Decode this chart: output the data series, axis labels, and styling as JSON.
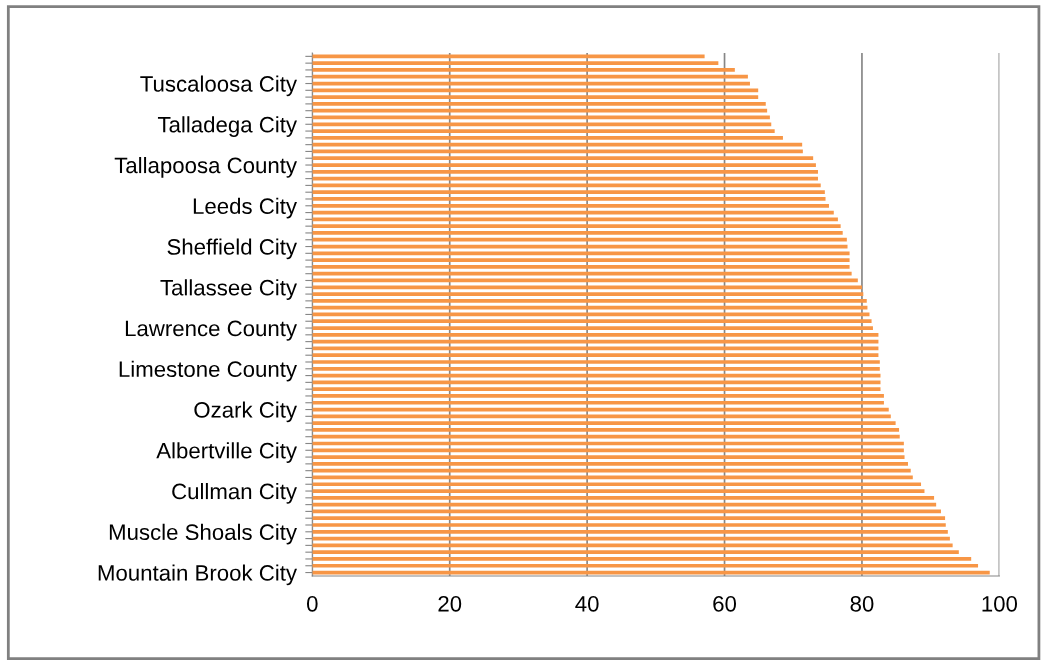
{
  "chart_data": {
    "type": "bar",
    "orientation": "horizontal",
    "color": "#f79646",
    "categories": [
      null,
      null,
      null,
      null,
      "Tuscaloosa City",
      null,
      null,
      null,
      null,
      null,
      "Talladega City",
      null,
      null,
      null,
      null,
      null,
      "Tallapoosa County",
      null,
      null,
      null,
      null,
      null,
      "Leeds City",
      null,
      null,
      null,
      null,
      null,
      "Sheffield City",
      null,
      null,
      null,
      null,
      null,
      "Tallassee City",
      null,
      null,
      null,
      null,
      null,
      "Lawrence County",
      null,
      null,
      null,
      null,
      null,
      "Limestone County",
      null,
      null,
      null,
      null,
      null,
      "Ozark City",
      null,
      null,
      null,
      null,
      null,
      "Albertville City",
      null,
      null,
      null,
      null,
      null,
      "Cullman City",
      null,
      null,
      null,
      null,
      null,
      "Muscle Shoals City",
      null,
      null,
      null,
      null,
      null,
      "Mountain Brook City"
    ],
    "values": [
      57.1,
      59.1,
      61.5,
      63.4,
      63.7,
      64.9,
      64.9,
      66.0,
      66.2,
      66.6,
      66.8,
      67.3,
      68.5,
      71.3,
      71.4,
      72.9,
      73.3,
      73.6,
      73.6,
      74.0,
      74.6,
      74.7,
      75.2,
      75.9,
      76.5,
      76.9,
      77.2,
      77.8,
      77.9,
      78.2,
      78.2,
      78.2,
      78.5,
      79.4,
      80.0,
      80.2,
      80.7,
      80.8,
      81.1,
      81.4,
      81.6,
      82.4,
      82.4,
      82.4,
      82.4,
      82.6,
      82.6,
      82.7,
      82.7,
      82.7,
      83.2,
      83.2,
      83.9,
      84.2,
      84.9,
      85.4,
      85.5,
      86.1,
      86.1,
      86.2,
      86.7,
      87.1,
      87.4,
      88.6,
      89.1,
      90.5,
      90.8,
      91.5,
      92.1,
      92.2,
      92.5,
      92.8,
      93.2,
      94.1,
      95.9,
      96.9,
      98.6
    ],
    "xlim": [
      0,
      100
    ],
    "xticks": [
      0,
      20,
      40,
      60,
      80,
      100
    ],
    "grid": "x",
    "legend": false
  }
}
